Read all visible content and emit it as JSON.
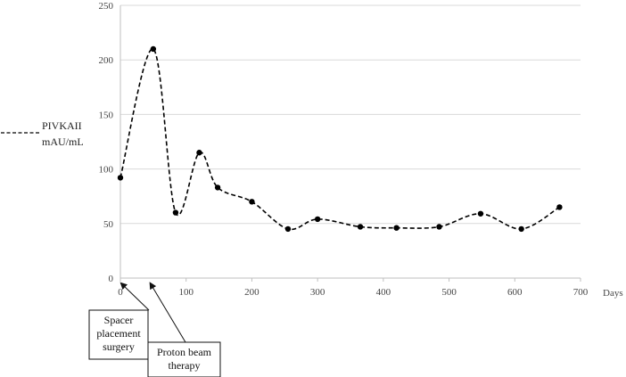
{
  "chart_data": {
    "type": "line",
    "x": [
      0,
      50,
      84,
      120,
      148,
      200,
      255,
      300,
      365,
      420,
      485,
      548,
      610,
      668
    ],
    "series": [
      {
        "name": "PIVKAII",
        "values": [
          92,
          210,
          60,
          115,
          83,
          70,
          45,
          54,
          47,
          46,
          47,
          59,
          45,
          65
        ],
        "style": "dashed",
        "color": "#000000"
      }
    ],
    "legend": {
      "line1": "PIVKAII",
      "line2": "mAU/mL",
      "placement": "left"
    },
    "xlabel": "Days",
    "xlim": [
      0,
      700
    ],
    "ylim": [
      0,
      250
    ],
    "xticks": [
      "0",
      "100",
      "200",
      "300",
      "400",
      "500",
      "600",
      "700"
    ],
    "yticks": [
      "0",
      "50",
      "100",
      "150",
      "200",
      "250"
    ],
    "grid": "horizontal",
    "annotations": [
      {
        "lines": [
          "Spacer",
          "placement",
          "surgery"
        ],
        "x": 0
      },
      {
        "lines": [
          "Proton beam",
          "therapy"
        ],
        "x": 28
      }
    ]
  }
}
